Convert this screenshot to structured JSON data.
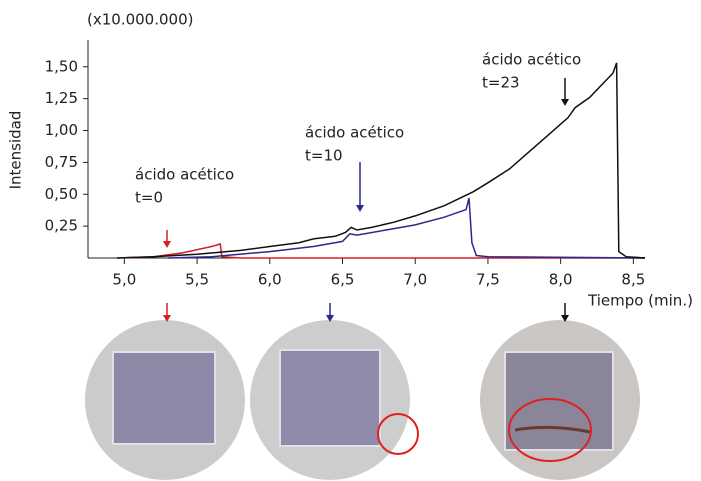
{
  "chart_data": {
    "type": "line",
    "unit_label": "(x10.000.000)",
    "y_label": "Intensidad",
    "x_label": "Tiempo (min.)",
    "xlim": [
      4.75,
      8.58
    ],
    "ylim": [
      0,
      1.71
    ],
    "xticks": [
      {
        "value": 5.0,
        "label": "5,0"
      },
      {
        "value": 5.5,
        "label": "5,5"
      },
      {
        "value": 6.0,
        "label": "6,0"
      },
      {
        "value": 6.5,
        "label": "6,5"
      },
      {
        "value": 7.0,
        "label": "7,0"
      },
      {
        "value": 7.5,
        "label": "7,5"
      },
      {
        "value": 8.0,
        "label": "8,0"
      },
      {
        "value": 8.5,
        "label": "8,5"
      }
    ],
    "yticks": [
      {
        "value": 0.25,
        "label": "0,25"
      },
      {
        "value": 0.5,
        "label": "0,50"
      },
      {
        "value": 0.75,
        "label": "0,75"
      },
      {
        "value": 1.0,
        "label": "1,00"
      },
      {
        "value": 1.25,
        "label": "1,25"
      },
      {
        "value": 1.5,
        "label": "1,50"
      }
    ],
    "series": [
      {
        "color": "#d42020",
        "x": [
          4.95,
          5.2,
          5.4,
          5.6,
          5.66,
          5.67,
          5.8,
          8.58
        ],
        "values": [
          0,
          0.01,
          0.04,
          0.09,
          0.11,
          0.01,
          0,
          0
        ]
      },
      {
        "color": "#2a2a8c",
        "x": [
          5.3,
          5.6,
          6.0,
          6.3,
          6.5,
          6.55,
          6.6,
          6.8,
          7.0,
          7.2,
          7.35,
          7.37,
          7.39,
          7.42,
          7.5,
          8.58
        ],
        "values": [
          0,
          0.01,
          0.05,
          0.09,
          0.13,
          0.19,
          0.18,
          0.22,
          0.26,
          0.32,
          0.38,
          0.47,
          0.12,
          0.02,
          0.01,
          0
        ]
      },
      {
        "color": "#111111",
        "x": [
          4.95,
          5.2,
          5.5,
          5.8,
          6.0,
          6.2,
          6.3,
          6.45,
          6.52,
          6.56,
          6.6,
          6.7,
          6.85,
          7.0,
          7.2,
          7.4,
          7.5,
          7.65,
          7.8,
          7.9,
          8.0,
          8.05,
          8.1,
          8.2,
          8.3,
          8.36,
          8.385,
          8.4,
          8.45,
          8.58
        ],
        "values": [
          0,
          0.01,
          0.03,
          0.06,
          0.09,
          0.12,
          0.15,
          0.17,
          0.2,
          0.24,
          0.22,
          0.24,
          0.28,
          0.33,
          0.41,
          0.52,
          0.59,
          0.7,
          0.85,
          0.95,
          1.05,
          1.1,
          1.18,
          1.26,
          1.38,
          1.45,
          1.53,
          0.05,
          0.01,
          0
        ]
      }
    ],
    "annotations": [
      {
        "lines": [
          "ácido acético",
          "t=0"
        ]
      },
      {
        "lines": [
          "ácido acético",
          "t=10"
        ]
      },
      {
        "lines": [
          "ácido acético",
          "t=23"
        ]
      }
    ]
  }
}
